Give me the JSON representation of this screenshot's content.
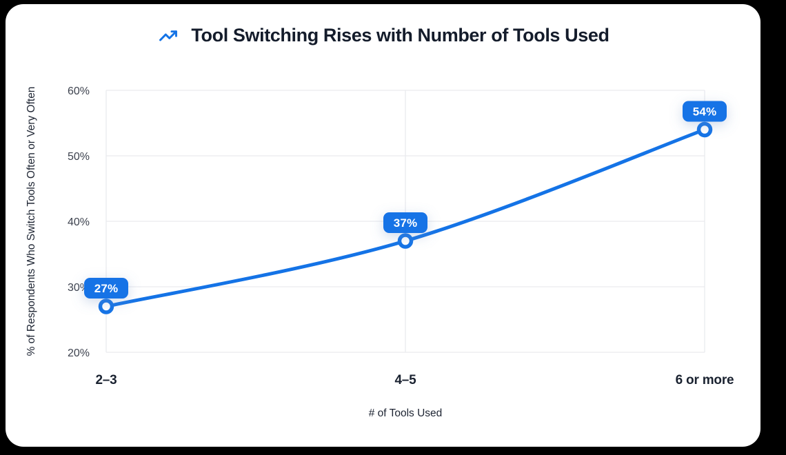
{
  "page": {
    "background_color": "#000000",
    "card_background": "#ffffff"
  },
  "header": {
    "icon": "trending-up-icon",
    "icon_color": "#1473e6",
    "title": "Tool Switching Rises with Number of Tools Used"
  },
  "chart_data": {
    "type": "line",
    "title": "Tool Switching Rises with Number of Tools Used",
    "categories": [
      "2–3",
      "4–5",
      "6 or more"
    ],
    "values": [
      27,
      37,
      54
    ],
    "point_labels": [
      "27%",
      "37%",
      "54%"
    ],
    "xlabel": "# of Tools Used",
    "ylabel": "% of Respondents Who Switch Tools Often or Very Often",
    "ylim": [
      20,
      60
    ],
    "yticks": [
      20,
      30,
      40,
      50,
      60
    ],
    "ytick_labels": [
      "20%",
      "30%",
      "40%",
      "50%",
      "60%"
    ],
    "grid": true,
    "legend": "none",
    "line_color": "#1473e6",
    "line_width": 5,
    "marker_fill": "#ffffff",
    "marker_stroke": "#1473e6",
    "badge_fill": "#1473e6",
    "badge_text_color": "#ffffff",
    "grid_color": "#e9eaee",
    "smooth": true
  }
}
